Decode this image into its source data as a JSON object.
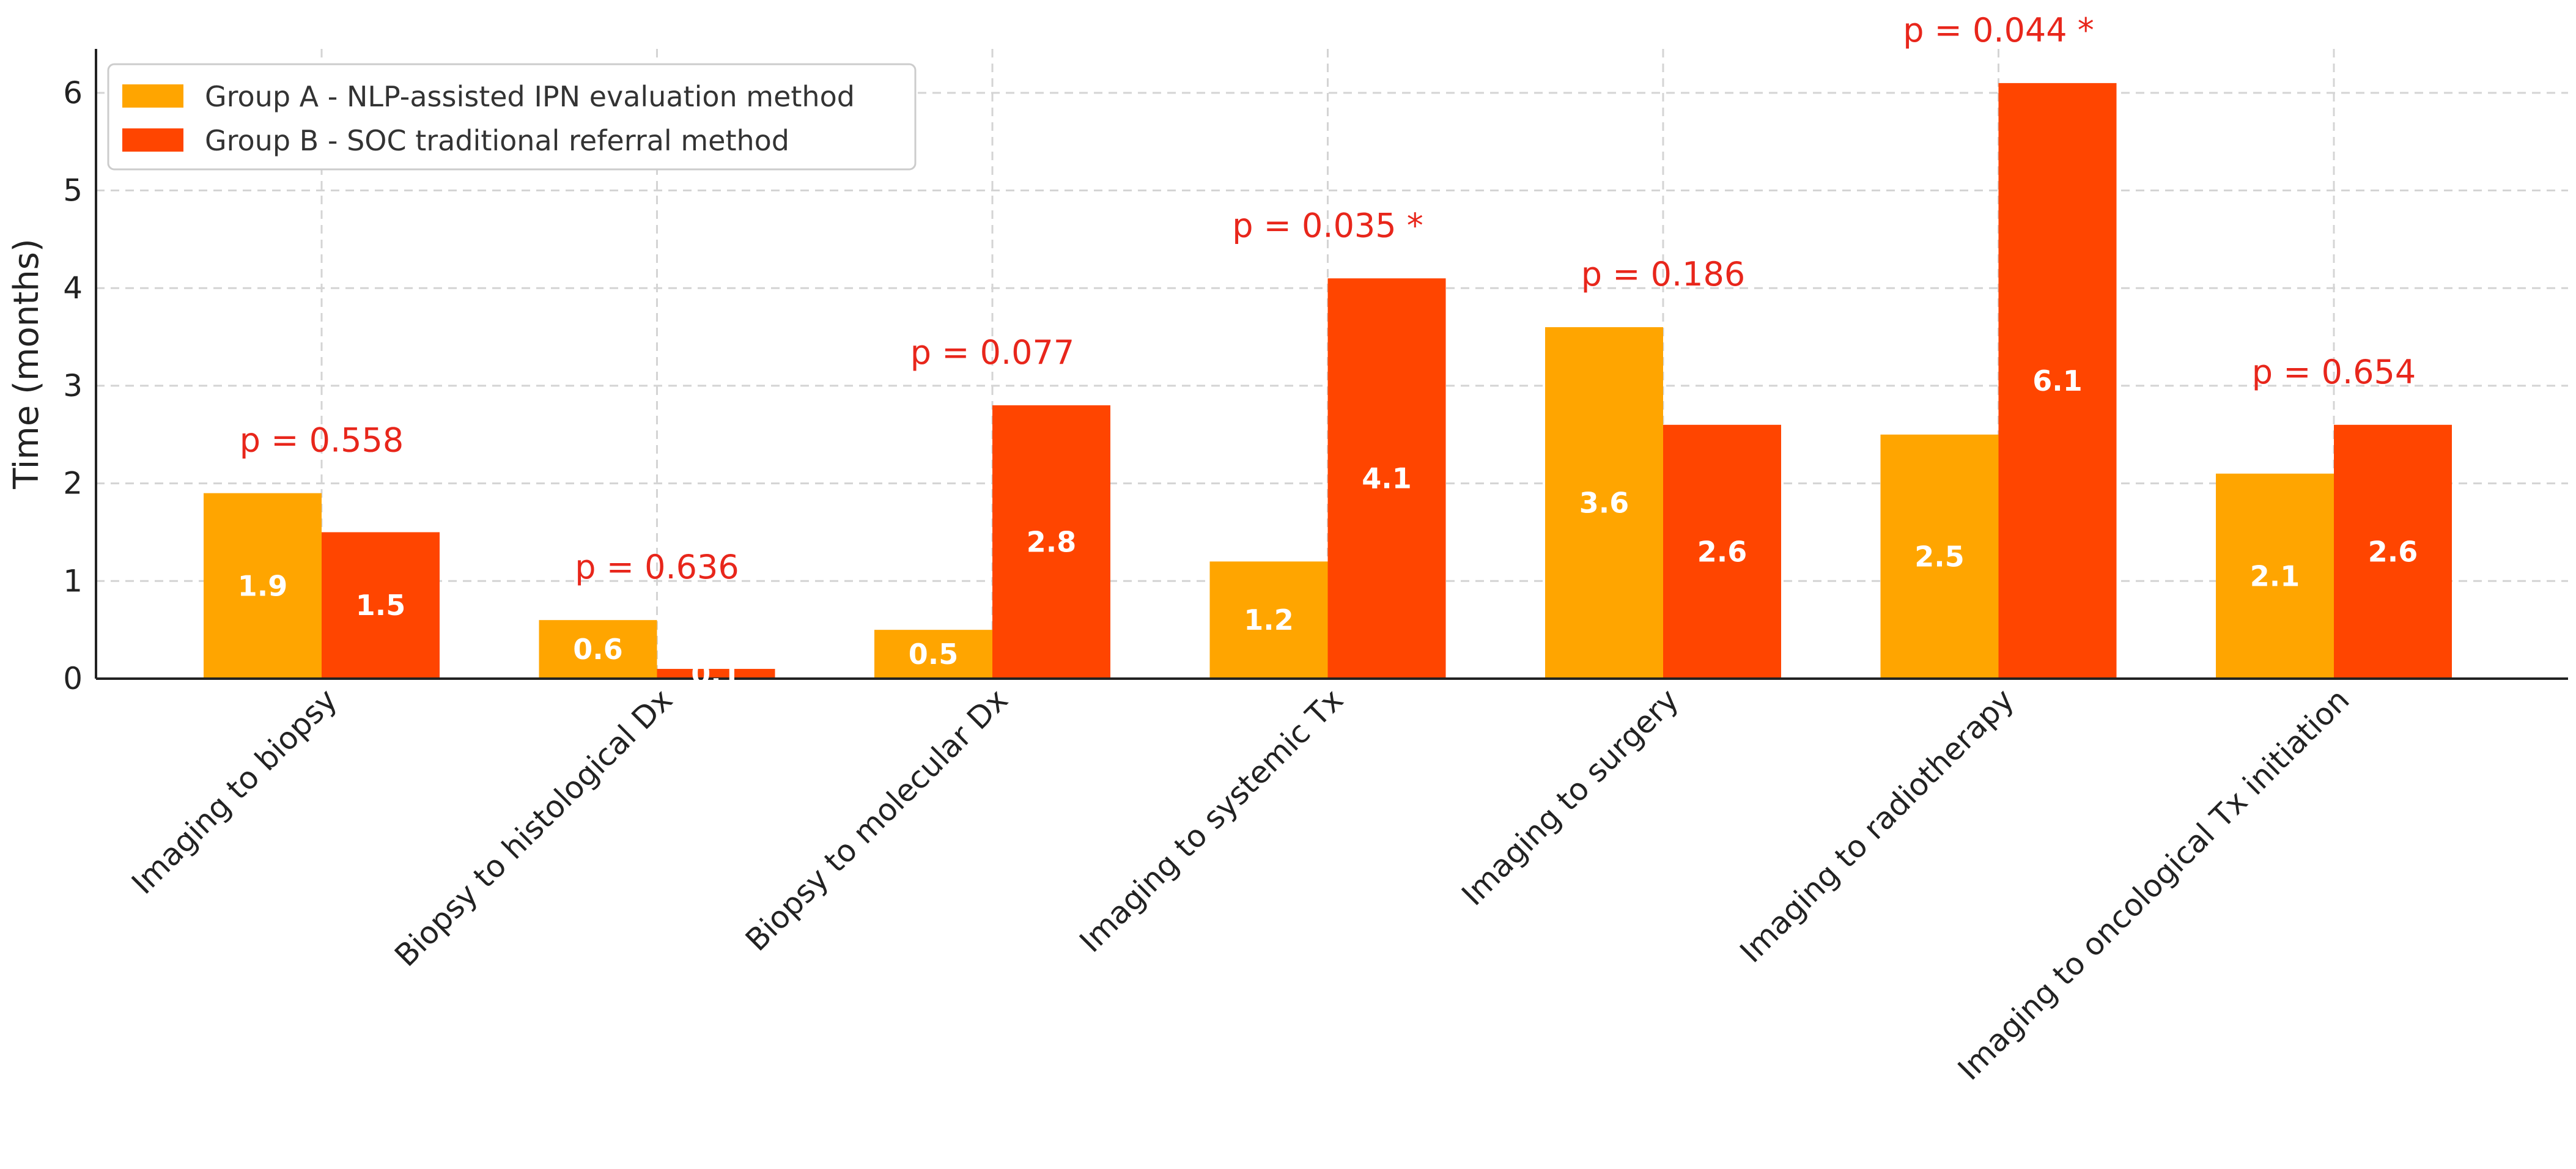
{
  "chart_data": {
    "type": "bar",
    "title": "",
    "xlabel": "",
    "ylabel": "Time (months)",
    "ylim": [
      0,
      6.45
    ],
    "yticks": [
      0,
      1,
      2,
      3,
      4,
      5,
      6
    ],
    "grid": true,
    "legend_position": "top-left",
    "categories": [
      "Imaging to biopsy",
      "Biopsy to histological Dx",
      "Biopsy to molecular Dx",
      "Imaging to systemic Tx",
      "Imaging to surgery",
      "Imaging to radiotherapy",
      "Imaging to oncological Tx initiation"
    ],
    "series": [
      {
        "name": "Group A - NLP-assisted IPN evaluation method",
        "color": "#ffa500",
        "values": [
          1.9,
          0.6,
          0.5,
          1.2,
          3.6,
          2.5,
          2.1
        ]
      },
      {
        "name": "Group B - SOC traditional referral method",
        "color": "#ff4500",
        "values": [
          1.5,
          0.1,
          2.8,
          4.1,
          2.6,
          6.1,
          2.6
        ]
      }
    ],
    "annotations": [
      "p = 0.558",
      "p = 0.636",
      "p = 0.077",
      "p = 0.035 *",
      "p = 0.186",
      "p = 0.044 *",
      "p = 0.654"
    ],
    "annotation_color": "#e8261b"
  }
}
